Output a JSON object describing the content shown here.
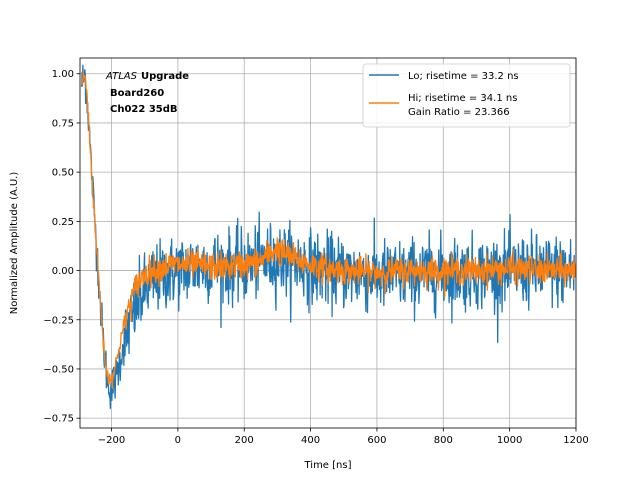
{
  "chart_data": {
    "type": "line",
    "title": "",
    "xlabel": "Time [ns]",
    "ylabel": "Normalized Amplitude (A.U.)",
    "xlim": [
      -295,
      1200
    ],
    "ylim": [
      -0.8,
      1.08
    ],
    "xticks": [
      -200,
      0,
      200,
      400,
      600,
      800,
      1000,
      1200
    ],
    "xtick_labels": [
      "−200",
      "0",
      "200",
      "400",
      "600",
      "800",
      "1000",
      "1200"
    ],
    "yticks": [
      -0.75,
      -0.5,
      -0.25,
      0.0,
      0.25,
      0.5,
      0.75,
      1.0
    ],
    "ytick_labels": [
      "−0.75",
      "−0.50",
      "−0.25",
      "0.00",
      "0.25",
      "0.50",
      "0.75",
      "1.00"
    ],
    "grid": true,
    "legend_position": "top-right",
    "annotation": {
      "atlas": "ATLAS",
      "upgrade": "Upgrade",
      "board": "Board260",
      "channel": "Ch022 35dB"
    },
    "series": [
      {
        "name": "Lo; risetime = 33.2 ns",
        "color": "#1f77b4",
        "noise": 0.09,
        "x": [
          -290,
          -280,
          -270,
          -260,
          -250,
          -240,
          -230,
          -220,
          -210,
          -200,
          -190,
          -180,
          -170,
          -160,
          -150,
          -140,
          -130,
          -120,
          -100,
          -80,
          -60,
          -40,
          -20,
          0,
          50,
          100,
          150,
          200,
          250,
          300,
          350,
          400,
          450,
          500,
          600,
          700,
          800,
          900,
          1000,
          1100,
          1200
        ],
        "y": [
          0.95,
          1.0,
          0.8,
          0.5,
          0.25,
          0.0,
          -0.25,
          -0.45,
          -0.58,
          -0.6,
          -0.56,
          -0.5,
          -0.42,
          -0.35,
          -0.3,
          -0.25,
          -0.2,
          -0.16,
          -0.1,
          -0.06,
          -0.04,
          -0.02,
          -0.01,
          0.0,
          0.02,
          0.03,
          0.02,
          0.02,
          0.05,
          0.06,
          0.04,
          0.02,
          0.0,
          -0.01,
          -0.03,
          -0.02,
          -0.01,
          -0.01,
          0.0,
          0.0,
          0.0
        ]
      },
      {
        "name": "Hi; risetime = 34.1 ns\n Gain Ratio = 23.366",
        "color": "#ff7f0e",
        "noise": 0.035,
        "x": [
          -290,
          -280,
          -270,
          -260,
          -250,
          -240,
          -230,
          -220,
          -210,
          -200,
          -190,
          -180,
          -170,
          -160,
          -150,
          -140,
          -130,
          -120,
          -100,
          -80,
          -60,
          -40,
          -20,
          0,
          50,
          100,
          150,
          200,
          250,
          270,
          300,
          320,
          350,
          400,
          450,
          500,
          600,
          700,
          800,
          900,
          1000,
          1100,
          1200
        ],
        "y": [
          0.95,
          1.0,
          0.8,
          0.5,
          0.25,
          0.0,
          -0.25,
          -0.45,
          -0.55,
          -0.55,
          -0.5,
          -0.42,
          -0.33,
          -0.26,
          -0.2,
          -0.15,
          -0.1,
          -0.06,
          -0.02,
          0.0,
          0.01,
          0.02,
          0.03,
          0.03,
          0.03,
          0.02,
          0.02,
          0.03,
          0.05,
          0.08,
          0.11,
          0.09,
          0.06,
          0.03,
          0.01,
          0.0,
          -0.01,
          0.0,
          0.0,
          0.0,
          0.01,
          0.0,
          0.0
        ]
      }
    ]
  }
}
